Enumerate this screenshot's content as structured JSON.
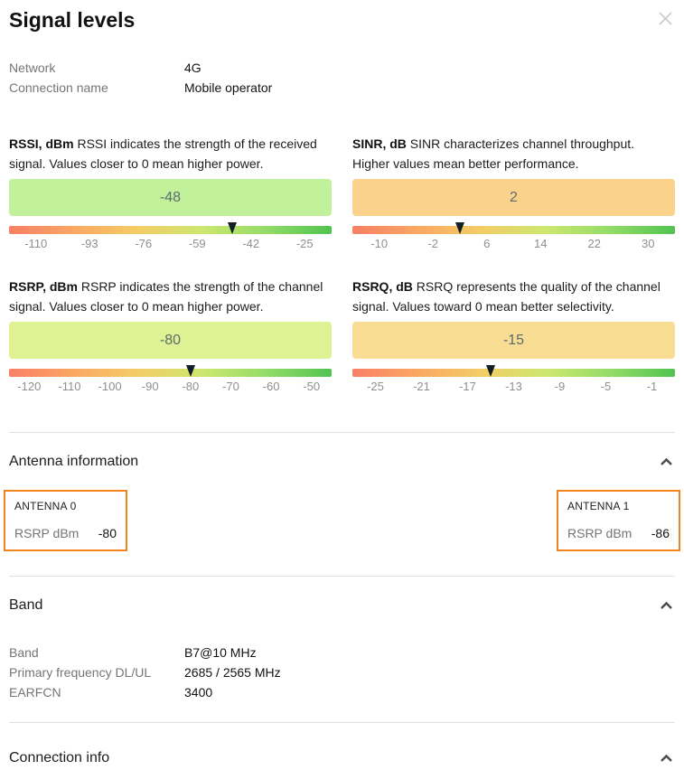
{
  "header": {
    "title": "Signal levels"
  },
  "connection": {
    "rows": [
      {
        "label": "Network",
        "value": "4G"
      },
      {
        "label": "Connection name",
        "value": "Mobile operator"
      }
    ]
  },
  "gauges": [
    {
      "id": "rssi",
      "name": "RSSI, dBm",
      "description": "RSSI indicates the strength of the received signal. Values closer to 0 mean higher power.",
      "value": -48,
      "display_value": "-48",
      "min": -110,
      "max": -25,
      "ticks": [
        "-110",
        "-93",
        "-76",
        "-59",
        "-42",
        "-25"
      ],
      "box_color": "#c1f19b"
    },
    {
      "id": "sinr",
      "name": "SINR, dB",
      "description": "SINR characterizes channel throughput. Higher values mean better performance.",
      "value": 2,
      "display_value": "2",
      "min": -10,
      "max": 30,
      "ticks": [
        "-10",
        "-2",
        "6",
        "14",
        "22",
        "30"
      ],
      "box_color": "#fbd28c"
    },
    {
      "id": "rsrp",
      "name": "RSRP, dBm",
      "description": "RSRP indicates the strength of the channel signal. Values closer to 0 mean higher power.",
      "value": -80,
      "display_value": "-80",
      "min": -120,
      "max": -50,
      "ticks": [
        "-120",
        "-110",
        "-100",
        "-90",
        "-80",
        "-70",
        "-60",
        "-50"
      ],
      "box_color": "#def294"
    },
    {
      "id": "rsrq",
      "name": "RSRQ, dB",
      "description": "RSRQ represents the quality of the channel signal. Values toward 0 mean better selectivity.",
      "value": -15,
      "display_value": "-15",
      "min": -25,
      "max": -1,
      "ticks": [
        "-25",
        "-21",
        "-17",
        "-13",
        "-9",
        "-5",
        "-1"
      ],
      "box_color": "#f8dd92"
    }
  ],
  "antenna_section": {
    "title": "Antenna information",
    "antennas": [
      {
        "title": "ANTENNA 0",
        "metric_label": "RSRP dBm",
        "value": "-80"
      },
      {
        "title": "ANTENNA 1",
        "metric_label": "RSRP dBm",
        "value": "-86"
      }
    ]
  },
  "band_section": {
    "title": "Band",
    "rows": [
      {
        "label": "Band",
        "value": "B7@10 MHz"
      },
      {
        "label": "Primary frequency DL/UL",
        "value": "2685 / 2565 MHz"
      },
      {
        "label": "EARFCN",
        "value": "3400"
      }
    ]
  },
  "connection_info_section": {
    "title": "Connection info"
  },
  "colors": {
    "accent_orange": "#f2831d",
    "marker": "#121f26",
    "gradient": [
      "#f87f66",
      "#fba763",
      "#f3cd66",
      "#cde76f",
      "#93dc67",
      "#51c350"
    ],
    "divider": "#e0e0e0"
  }
}
